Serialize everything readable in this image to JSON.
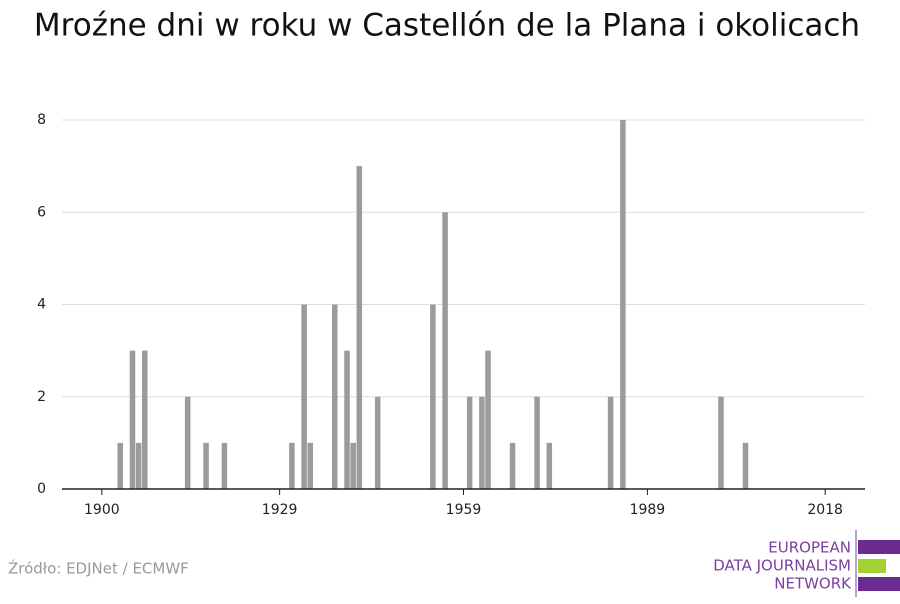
{
  "chart_data": {
    "type": "bar",
    "title": "Mroźne dni w roku w Castellón de la Plana i okolicach",
    "x": [
      1903,
      1905,
      1906,
      1907,
      1914,
      1917,
      1920,
      1931,
      1933,
      1934,
      1938,
      1940,
      1941,
      1942,
      1945,
      1954,
      1956,
      1960,
      1962,
      1963,
      1967,
      1971,
      1973,
      1983,
      1985,
      2001,
      2005
    ],
    "values": [
      1,
      3,
      1,
      3,
      2,
      1,
      1,
      1,
      4,
      1,
      4,
      3,
      1,
      7,
      2,
      4,
      6,
      2,
      2,
      3,
      1,
      2,
      1,
      2,
      8,
      2,
      1
    ],
    "color": "#9b9b9b",
    "xlim": [
      1893.5,
      2024.5
    ],
    "xticks": [
      1900,
      1929,
      1959,
      1989,
      2018
    ],
    "ylim": [
      0,
      8
    ],
    "yticks": [
      0,
      2,
      4,
      6,
      8
    ],
    "grid": true
  },
  "source": "Źródło: EDJNet / ECMWF",
  "logo": {
    "lines": [
      "EUROPEAN",
      "DATA JOURNALISM",
      "NETWORK"
    ]
  }
}
